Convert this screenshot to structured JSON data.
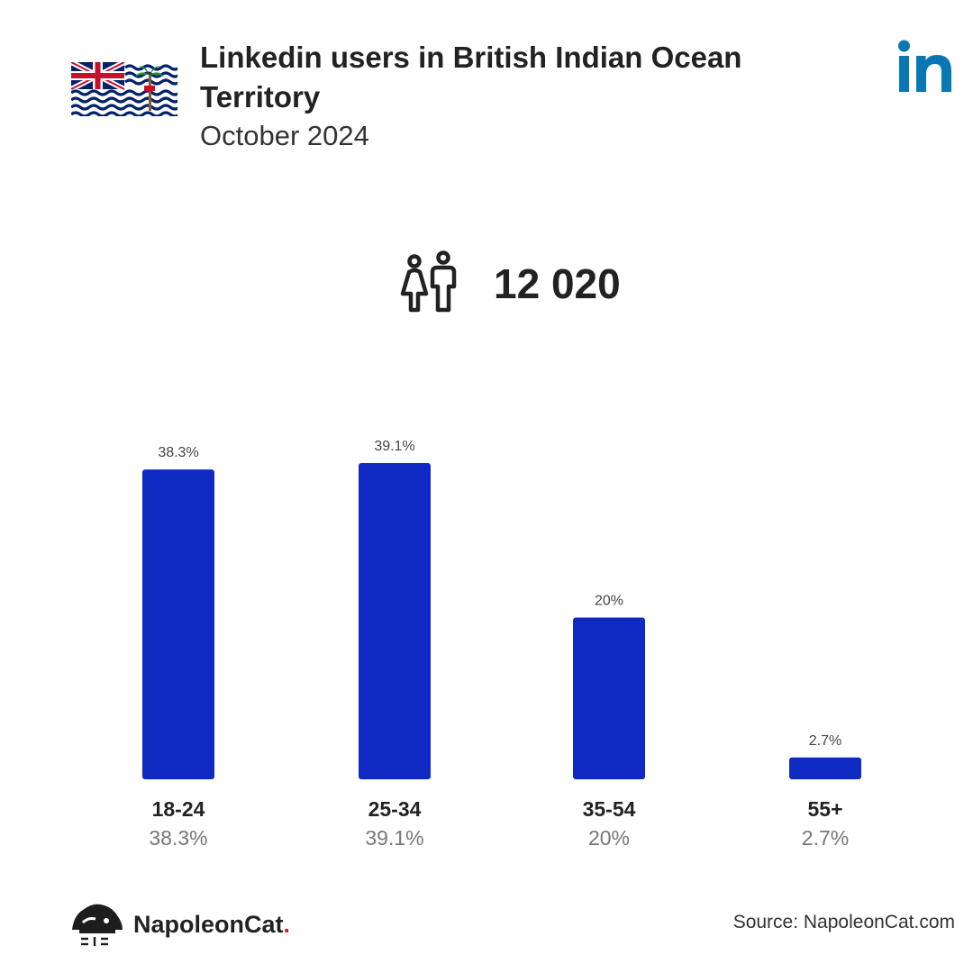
{
  "header": {
    "title": "Linkedin users in British Indian Ocean Territory",
    "subtitle": "October 2024"
  },
  "icons": {
    "flag": "british-indian-ocean-territory-flag",
    "platform_logo": "linkedin-logo",
    "users": "people-icon",
    "brand": "napoleoncat-logo"
  },
  "total_users": "12 020",
  "chart_data": {
    "type": "bar",
    "categories": [
      "18-24",
      "25-34",
      "35-54",
      "55+"
    ],
    "values": [
      38.3,
      39.1,
      20,
      2.7
    ],
    "value_labels": [
      "38.3%",
      "39.1%",
      "20%",
      "2.7%"
    ],
    "ylim": [
      0,
      39.1
    ],
    "grid": false,
    "bar_color": "#0f2ac2"
  },
  "footer": {
    "brand_name": "NapoleonCat",
    "brand_dot": ".",
    "source": "Source: NapoleonCat.com"
  },
  "colors": {
    "bar": "#0f2ac2",
    "linkedin": "#0a77b5",
    "text": "#222222",
    "muted": "#666666",
    "brand_accent": "#d0212f"
  }
}
